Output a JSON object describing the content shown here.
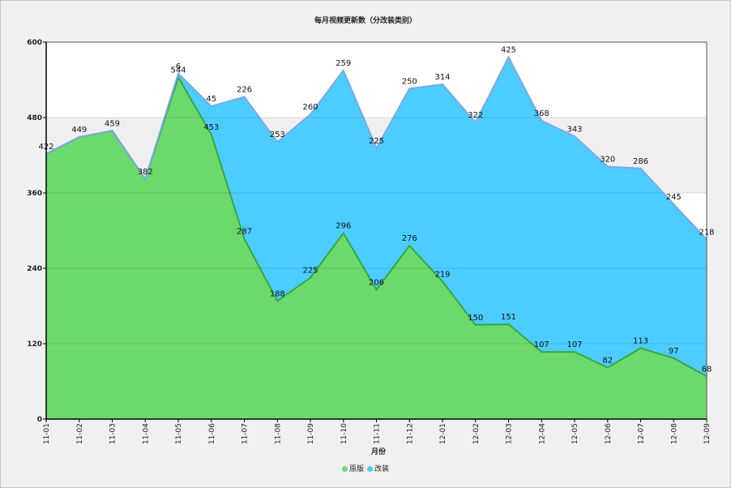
{
  "chart_data": {
    "type": "area",
    "stacked": true,
    "title": "每月视频更新数（分改装类别）",
    "xlabel": "月份",
    "ylabel": "",
    "ylim": [
      0,
      600
    ],
    "yticks": [
      0,
      120,
      240,
      360,
      480,
      600
    ],
    "categories": [
      "11-01",
      "11-02",
      "11-03",
      "11-04",
      "11-05",
      "11-06",
      "11-07",
      "11-08",
      "11-09",
      "11-10",
      "11-11",
      "11-12",
      "12-01",
      "12-02",
      "12-03",
      "12-04",
      "12-05",
      "12-06",
      "12-07",
      "12-08",
      "12-09"
    ],
    "series": [
      {
        "name": "原版",
        "color": "#6cd96c",
        "line_color": "#3aa640",
        "values": [
          422,
          449,
          459,
          382,
          544,
          453,
          287,
          188,
          225,
          296,
          206,
          276,
          219,
          150,
          151,
          107,
          107,
          82,
          113,
          97,
          68
        ]
      },
      {
        "name": "改装",
        "color": "#4ccdff",
        "line_color": "#7aa8e6",
        "values": [
          0,
          0,
          0,
          0,
          6,
          45,
          226,
          253,
          260,
          259,
          225,
          250,
          314,
          322,
          425,
          368,
          343,
          320,
          286,
          245,
          218
        ]
      }
    ],
    "legend_position": "bottom-center",
    "grid": true
  }
}
